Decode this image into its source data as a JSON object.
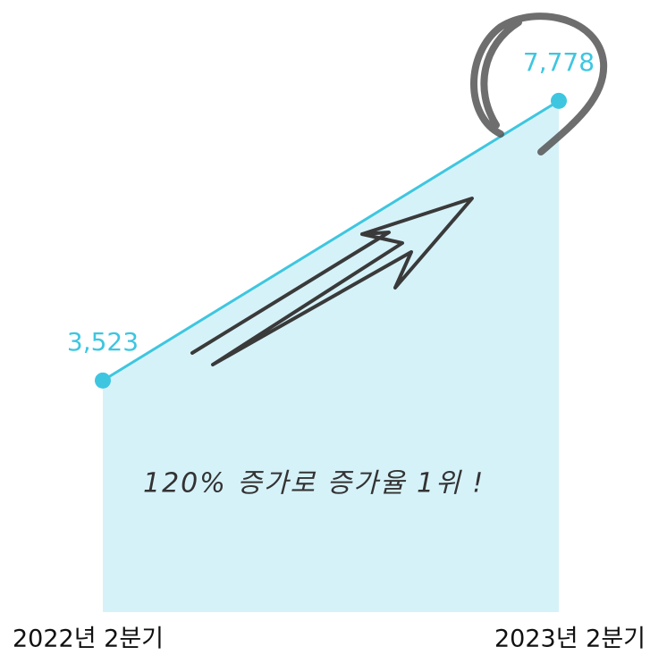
{
  "chart_data": {
    "type": "area",
    "categories": [
      "2022년 2분기",
      "2023년 2분기"
    ],
    "values": [
      3523,
      7778
    ],
    "value_labels": [
      "3,523",
      "7,778"
    ],
    "color": "#3ec6e0",
    "fill_color": "#d6f2f9",
    "annotation": "120% 증가로 증가율 1위 !"
  }
}
